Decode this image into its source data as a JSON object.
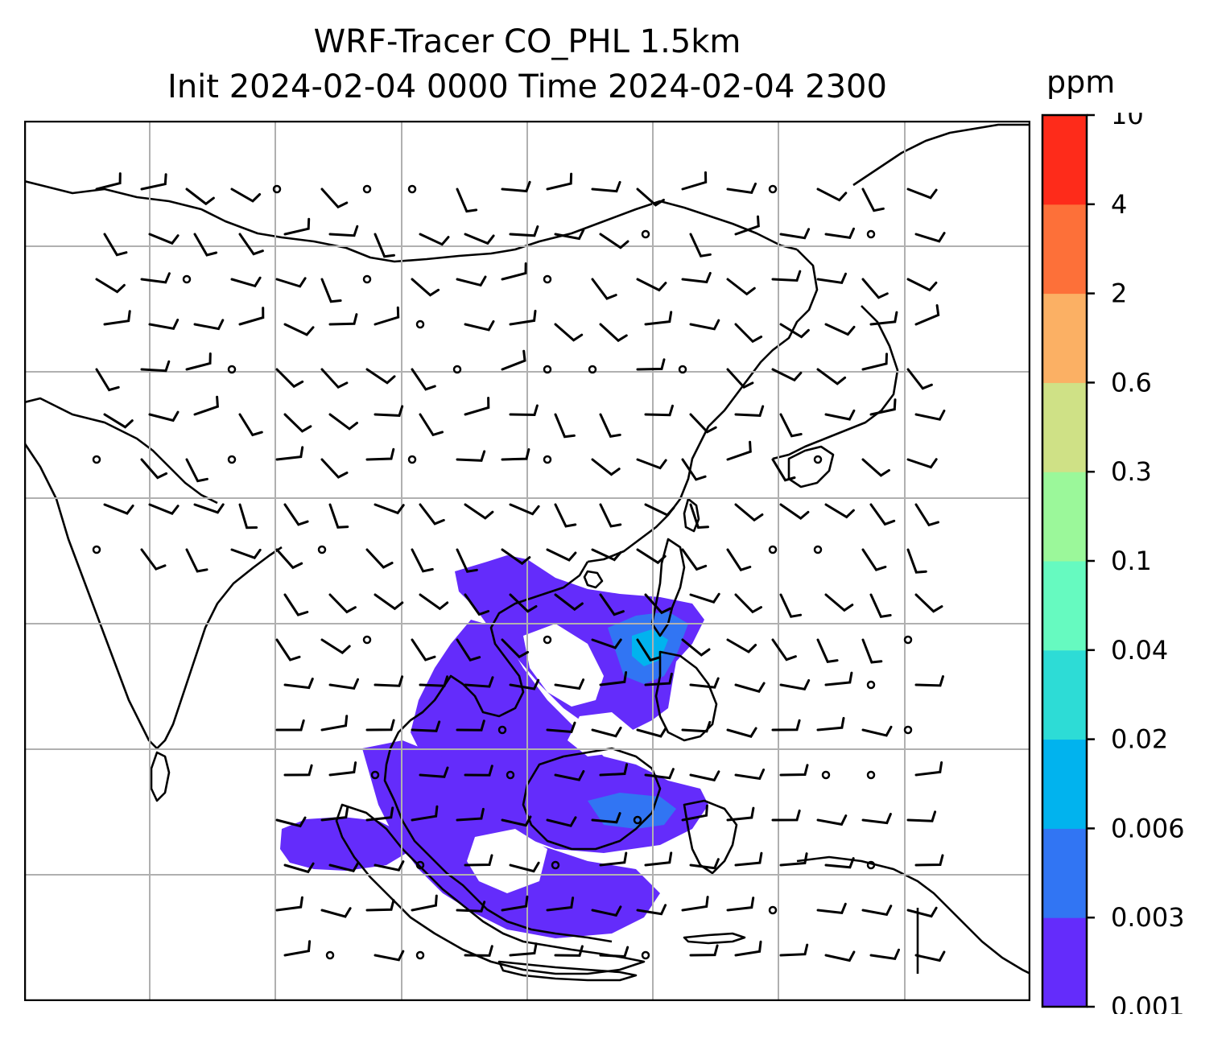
{
  "title_line_1": "WRF-Tracer CO_PHL 1.5km",
  "title_line_2": "Init 2024-02-04 0000 Time 2024-02-04 2300",
  "colorbar": {
    "unit_label": "ppm",
    "levels": [
      "0.001",
      "0.003",
      "0.006",
      "0.02",
      "0.04",
      "0.1",
      "0.3",
      "0.6",
      "2",
      "4",
      "10"
    ],
    "colors": [
      "#642cfb",
      "#3175f3",
      "#01b3ee",
      "#2ddcd6",
      "#66fac0",
      "#9bf89a",
      "#cfe186",
      "#fbb064",
      "#fd7039",
      "#fe2b1a"
    ]
  },
  "map": {
    "gridline_color": "#b0b0b0",
    "coastline_color": "#000000",
    "tracer_fill_color": "#642cfb",
    "tracer_secondary_color": "#3175f3",
    "tracer_tertiary_color": "#01b3ee",
    "wind_barb_color": "#000000"
  }
}
